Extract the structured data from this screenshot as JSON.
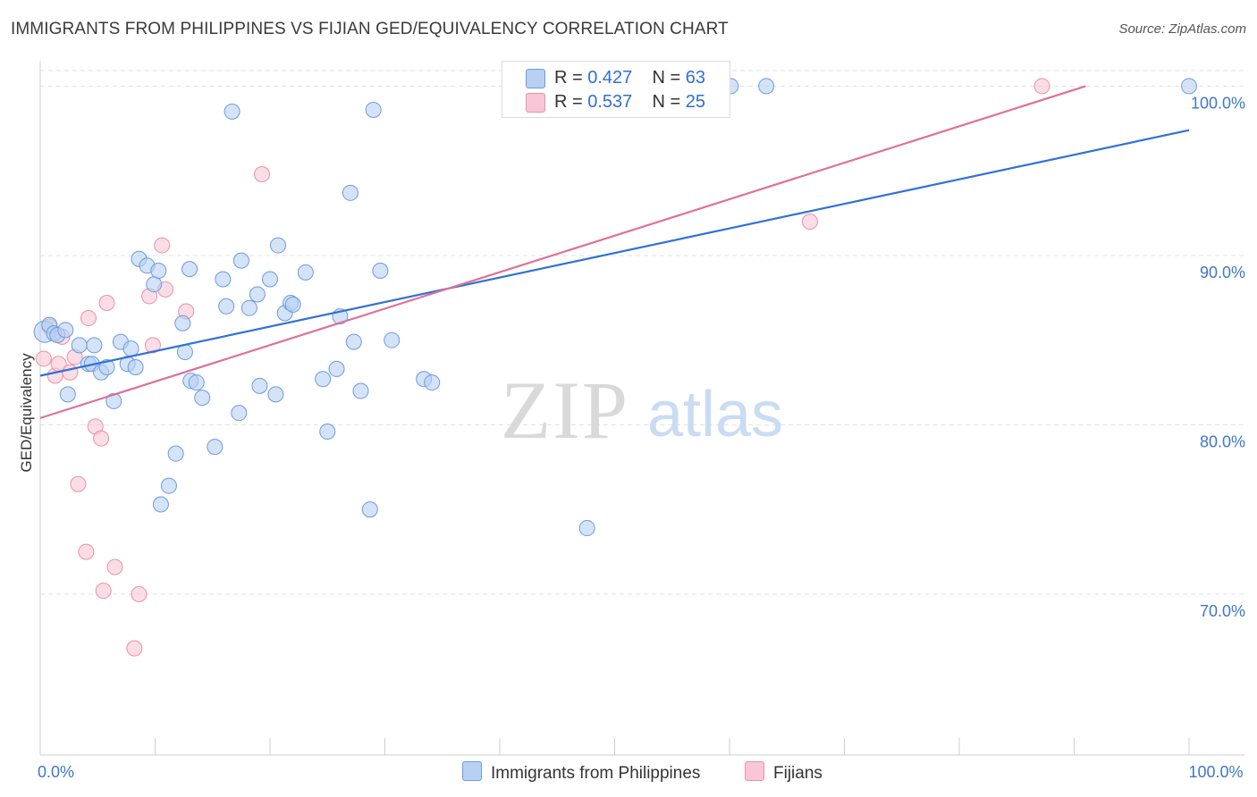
{
  "header": {
    "title": "IMMIGRANTS FROM PHILIPPINES VS FIJIAN GED/EQUIVALENCY CORRELATION CHART",
    "source": "Source: ZipAtlas.com"
  },
  "watermark": {
    "zip": "ZIP",
    "atlas": "atlas"
  },
  "legend": {
    "items": [
      {
        "r_label": "R =",
        "r_value": "0.427",
        "n_label": "N =",
        "n_value": "63"
      },
      {
        "r_label": "R =",
        "r_value": "0.537",
        "n_label": "N =",
        "n_value": "25"
      }
    ]
  },
  "bottom_legend": {
    "series1": "Immigrants from Philippines",
    "series2": "Fijians"
  },
  "colors": {
    "blue_fill": "#b8d1f3",
    "blue_stroke": "#6a9be0",
    "blue_line": "#2f72d6",
    "pink_fill": "#f8c6d6",
    "pink_stroke": "#e890ae",
    "pink_line": "#e0709a",
    "tick_label": "#3f77c9",
    "grid": "#e2e2e2"
  },
  "chart_data": {
    "type": "scatter",
    "title": "IMMIGRANTS FROM PHILIPPINES VS FIJIAN GED/EQUIVALENCY CORRELATION CHART",
    "xlabel": "",
    "ylabel": "GED/Equivalency",
    "xlim": [
      0,
      100
    ],
    "ylim": [
      60.5,
      101.5
    ],
    "x_tick_labels": [
      {
        "value": 0,
        "label": "0.0%"
      },
      {
        "value": 100,
        "label": "100.0%"
      }
    ],
    "y_tick_labels": [
      {
        "value": 100,
        "label": "100.0%"
      },
      {
        "value": 90,
        "label": "90.0%"
      },
      {
        "value": 80,
        "label": "80.0%"
      },
      {
        "value": 70,
        "label": "70.0%"
      }
    ],
    "series": [
      {
        "name": "Immigrants from Philippines",
        "R": 0.427,
        "N": 63,
        "trend": {
          "x0": 0,
          "y0": 82.9,
          "x1": 100,
          "y1": 97.4
        },
        "points": [
          [
            0.4,
            85.5
          ],
          [
            0.8,
            85.9
          ],
          [
            1.2,
            85.4
          ],
          [
            1.5,
            85.3
          ],
          [
            2.2,
            85.6
          ],
          [
            2.4,
            81.8
          ],
          [
            3.4,
            84.7
          ],
          [
            4.2,
            83.6
          ],
          [
            4.5,
            83.6
          ],
          [
            4.7,
            84.7
          ],
          [
            5.3,
            83.1
          ],
          [
            5.8,
            83.4
          ],
          [
            6.4,
            81.4
          ],
          [
            7.0,
            84.9
          ],
          [
            7.6,
            83.6
          ],
          [
            7.9,
            84.5
          ],
          [
            8.3,
            83.4
          ],
          [
            8.6,
            89.8
          ],
          [
            9.3,
            89.4
          ],
          [
            9.9,
            88.3
          ],
          [
            10.3,
            89.1
          ],
          [
            10.5,
            75.3
          ],
          [
            11.2,
            76.4
          ],
          [
            11.8,
            78.3
          ],
          [
            12.4,
            86.0
          ],
          [
            12.6,
            84.3
          ],
          [
            13.0,
            89.2
          ],
          [
            13.1,
            82.6
          ],
          [
            13.6,
            82.5
          ],
          [
            14.1,
            81.6
          ],
          [
            15.2,
            78.7
          ],
          [
            15.9,
            88.6
          ],
          [
            16.2,
            87.0
          ],
          [
            16.7,
            98.5
          ],
          [
            17.3,
            80.7
          ],
          [
            17.5,
            89.7
          ],
          [
            18.2,
            86.9
          ],
          [
            18.9,
            87.7
          ],
          [
            19.1,
            82.3
          ],
          [
            20.0,
            88.6
          ],
          [
            20.5,
            81.8
          ],
          [
            20.7,
            90.6
          ],
          [
            21.3,
            86.6
          ],
          [
            21.8,
            87.2
          ],
          [
            22.0,
            87.1
          ],
          [
            23.1,
            89.0
          ],
          [
            24.6,
            82.7
          ],
          [
            25.0,
            79.6
          ],
          [
            25.8,
            83.3
          ],
          [
            26.1,
            86.4
          ],
          [
            27.0,
            93.7
          ],
          [
            27.3,
            84.9
          ],
          [
            27.9,
            82.0
          ],
          [
            28.7,
            75.0
          ],
          [
            29.0,
            98.6
          ],
          [
            29.6,
            89.1
          ],
          [
            30.6,
            85.0
          ],
          [
            33.4,
            82.7
          ],
          [
            34.1,
            82.5
          ],
          [
            47.6,
            73.9
          ],
          [
            60.1,
            100.0
          ],
          [
            63.2,
            100.0
          ],
          [
            100.0,
            100.0
          ]
        ]
      },
      {
        "name": "Fijians",
        "R": 0.537,
        "N": 25,
        "trend": {
          "x0": 0,
          "y0": 80.4,
          "x1": 91.0,
          "y1": 100.0
        },
        "points": [
          [
            0.3,
            83.9
          ],
          [
            0.8,
            85.8
          ],
          [
            1.3,
            82.9
          ],
          [
            1.6,
            83.6
          ],
          [
            1.9,
            85.2
          ],
          [
            2.6,
            83.1
          ],
          [
            3.0,
            84.0
          ],
          [
            3.3,
            76.5
          ],
          [
            4.0,
            72.5
          ],
          [
            4.2,
            86.3
          ],
          [
            4.8,
            79.9
          ],
          [
            5.3,
            79.2
          ],
          [
            5.5,
            70.2
          ],
          [
            5.8,
            87.2
          ],
          [
            6.5,
            71.6
          ],
          [
            8.2,
            66.8
          ],
          [
            8.6,
            70.0
          ],
          [
            9.5,
            87.6
          ],
          [
            9.8,
            84.7
          ],
          [
            10.6,
            90.6
          ],
          [
            10.9,
            88.0
          ],
          [
            12.7,
            86.7
          ],
          [
            19.3,
            94.8
          ],
          [
            67.0,
            92.0
          ],
          [
            87.2,
            100.0
          ]
        ]
      }
    ]
  }
}
